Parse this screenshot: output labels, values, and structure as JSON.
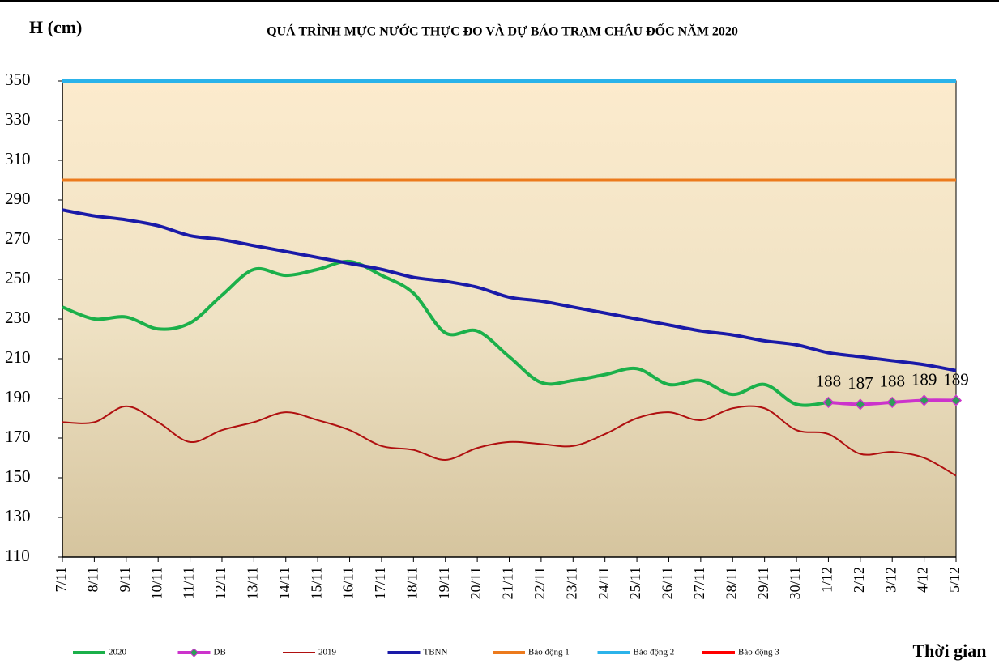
{
  "chart_data": {
    "type": "line",
    "title": "QUÁ TRÌNH MỰC NƯỚC THỰC ĐO VÀ DỰ BÁO TRẠM CHÂU ĐỐC NĂM  2020",
    "y_label": "H (cm)",
    "x_label": "Thời gian",
    "categories": [
      "7/11",
      "8/11",
      "9/11",
      "10/11",
      "11/11",
      "12/11",
      "13/11",
      "14/11",
      "15/11",
      "16/11",
      "17/11",
      "18/11",
      "19/11",
      "20/11",
      "21/11",
      "22/11",
      "23/11",
      "24/11",
      "25/11",
      "26/11",
      "27/11",
      "28/11",
      "29/11",
      "30/11",
      "1/12",
      "2/12",
      "3/12",
      "4/12",
      "5/12"
    ],
    "ylim": [
      110,
      350
    ],
    "yticks": [
      110,
      130,
      150,
      170,
      190,
      210,
      230,
      250,
      270,
      290,
      310,
      330,
      350
    ],
    "series": [
      {
        "name": "2020",
        "color": "#1bb04a",
        "width": 4,
        "values": [
          236,
          230,
          231,
          225,
          228,
          242,
          255,
          252,
          255,
          259,
          252,
          243,
          223,
          224,
          211,
          198,
          199,
          202,
          205,
          197,
          199,
          192,
          197,
          187,
          188,
          null,
          null,
          null,
          null
        ]
      },
      {
        "name": "DB",
        "color": "#cc33cc",
        "width": 4,
        "marker": "diamond",
        "marker_color": "#2e9e5a",
        "data_labels": true,
        "values": [
          null,
          null,
          null,
          null,
          null,
          null,
          null,
          null,
          null,
          null,
          null,
          null,
          null,
          null,
          null,
          null,
          null,
          null,
          null,
          null,
          null,
          null,
          null,
          null,
          188,
          187,
          188,
          189,
          189
        ]
      },
      {
        "name": "2019",
        "color": "#b01010",
        "width": 2,
        "values": [
          178,
          178,
          186,
          178,
          168,
          174,
          178,
          183,
          179,
          174,
          166,
          164,
          159,
          165,
          168,
          167,
          166,
          172,
          180,
          183,
          179,
          185,
          185,
          174,
          172,
          162,
          163,
          160,
          151
        ]
      },
      {
        "name": "TBNN",
        "color": "#1a1aa8",
        "width": 4,
        "values": [
          285,
          282,
          280,
          277,
          272,
          270,
          267,
          264,
          261,
          258,
          255,
          251,
          249,
          246,
          241,
          239,
          236,
          233,
          230,
          227,
          224,
          222,
          219,
          217,
          213,
          211,
          209,
          207,
          204
        ]
      },
      {
        "name": "Báo động 1",
        "color": "#ec7a1c",
        "width": 4,
        "values": [
          300,
          300,
          300,
          300,
          300,
          300,
          300,
          300,
          300,
          300,
          300,
          300,
          300,
          300,
          300,
          300,
          300,
          300,
          300,
          300,
          300,
          300,
          300,
          300,
          300,
          300,
          300,
          300,
          300
        ]
      },
      {
        "name": "Báo động 2",
        "color": "#2bb3ea",
        "width": 4,
        "values": [
          350,
          350,
          350,
          350,
          350,
          350,
          350,
          350,
          350,
          350,
          350,
          350,
          350,
          350,
          350,
          350,
          350,
          350,
          350,
          350,
          350,
          350,
          350,
          350,
          350,
          350,
          350,
          350,
          350
        ]
      },
      {
        "name": "Báo động 3",
        "color": "#ff0000",
        "width": 4,
        "values": [
          null,
          null,
          null,
          null,
          null,
          null,
          null,
          null,
          null,
          null,
          null,
          null,
          null,
          null,
          null,
          null,
          null,
          null,
          null,
          null,
          null,
          null,
          null,
          null,
          null,
          null,
          null,
          null,
          null
        ]
      }
    ]
  }
}
